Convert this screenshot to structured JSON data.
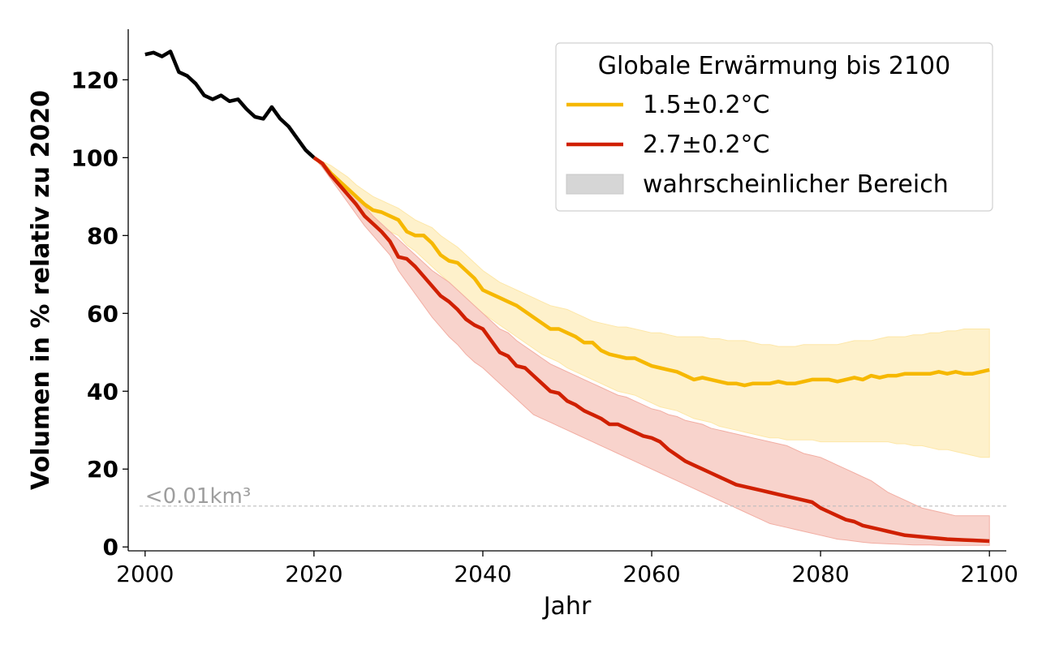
{
  "chart_data": {
    "type": "line",
    "xlabel": "Jahr",
    "ylabel": "Volumen in % relativ zu 2020",
    "xlim": [
      1998,
      2102
    ],
    "ylim": [
      -1,
      133
    ],
    "xticks": [
      2000,
      2020,
      2040,
      2060,
      2080,
      2100
    ],
    "yticks": [
      0,
      20,
      40,
      60,
      80,
      100,
      120
    ],
    "grid": false,
    "legend": {
      "title": "Globale Erwärmung bis 2100",
      "placement": "top-right",
      "entries": [
        "1.5±0.2°C",
        "2.7±0.2°C",
        "wahrscheinlicher Bereich"
      ]
    },
    "threshold": {
      "y": 10.5,
      "label": "<0.01km³",
      "color": "#bdbdbd"
    },
    "historical": {
      "color": "#000000",
      "x": [
        2000,
        2001,
        2002,
        2003,
        2004,
        2005,
        2006,
        2007,
        2008,
        2009,
        2010,
        2011,
        2012,
        2013,
        2014,
        2015,
        2016,
        2017,
        2018,
        2019,
        2020
      ],
      "y": [
        126.5,
        127,
        126,
        127.3,
        122,
        121,
        119,
        116,
        115,
        116,
        114.5,
        115,
        112.5,
        110.5,
        110,
        113,
        110,
        108,
        105,
        102,
        100
      ]
    },
    "series": [
      {
        "name": "1.5±0.2°C",
        "color": "#f6b800",
        "band_color": "#fde7a8",
        "x": [
          2020,
          2021,
          2022,
          2023,
          2024,
          2025,
          2026,
          2027,
          2028,
          2029,
          2030,
          2031,
          2032,
          2033,
          2034,
          2035,
          2036,
          2037,
          2038,
          2039,
          2040,
          2041,
          2042,
          2043,
          2044,
          2045,
          2046,
          2047,
          2048,
          2049,
          2050,
          2051,
          2052,
          2053,
          2054,
          2055,
          2056,
          2057,
          2058,
          2059,
          2060,
          2061,
          2062,
          2063,
          2064,
          2065,
          2066,
          2067,
          2068,
          2069,
          2070,
          2071,
          2072,
          2073,
          2074,
          2075,
          2076,
          2077,
          2078,
          2079,
          2080,
          2081,
          2082,
          2083,
          2084,
          2085,
          2086,
          2087,
          2088,
          2089,
          2090,
          2091,
          2092,
          2093,
          2094,
          2095,
          2096,
          2097,
          2098,
          2099,
          2100
        ],
        "y": [
          100,
          98.5,
          96,
          94,
          92,
          90,
          88,
          86.5,
          86,
          85,
          84,
          81,
          80,
          80,
          78,
          75,
          73.5,
          73,
          71,
          69,
          66,
          65,
          64,
          63,
          62,
          60.5,
          59,
          57.5,
          56,
          56,
          55,
          54,
          52.5,
          52.5,
          50.5,
          49.5,
          49,
          48.5,
          48.5,
          47.5,
          46.5,
          46,
          45.5,
          45,
          44,
          43,
          43.5,
          43,
          42.5,
          42,
          42,
          41.5,
          42,
          42,
          42,
          42.5,
          42,
          42,
          42.5,
          43,
          43,
          43,
          42.5,
          43,
          43.5,
          43,
          44,
          43.5,
          44,
          44,
          44.5,
          44.5,
          44.5,
          44.5,
          45,
          44.5,
          45,
          44.5,
          44.5,
          45,
          45.5
        ],
        "upper": [
          100,
          99,
          98,
          96.5,
          95,
          93,
          91.5,
          90,
          89,
          88,
          87,
          85.5,
          84,
          83,
          82,
          80,
          78.5,
          77,
          75,
          73,
          71,
          69.5,
          68,
          67,
          66,
          65,
          64,
          63,
          62,
          61.5,
          61,
          60,
          59,
          58,
          57.5,
          57,
          56.5,
          56.5,
          56,
          55.5,
          55,
          55,
          54.5,
          54,
          54,
          54,
          54,
          53.5,
          53.5,
          53,
          53,
          53,
          52.5,
          52,
          52,
          51.5,
          51.5,
          51.5,
          52,
          52,
          52,
          52,
          52,
          52.5,
          53,
          53,
          53,
          53.5,
          54,
          54,
          54,
          54.5,
          54.5,
          55,
          55,
          55.5,
          55.5,
          56,
          56,
          56,
          56
        ],
        "lower": [
          100,
          97.5,
          95,
          92.5,
          90,
          87.5,
          85,
          83.5,
          82,
          81,
          80,
          77.5,
          76,
          74,
          72,
          70,
          68,
          66,
          64,
          62,
          60,
          58.5,
          57,
          55.5,
          54,
          52.5,
          51,
          49.5,
          48.5,
          47.5,
          46,
          45,
          44,
          43,
          42,
          41,
          40,
          39.5,
          39,
          38,
          37,
          36,
          35.5,
          35,
          34,
          33,
          32.5,
          32,
          31,
          30.5,
          30,
          29.5,
          29,
          28.5,
          28,
          28,
          27.5,
          27.5,
          27.5,
          27.5,
          27,
          27,
          27,
          27,
          27,
          27,
          27,
          27,
          27,
          26.5,
          26.5,
          26,
          26,
          25.5,
          25,
          25,
          24.5,
          24,
          23.5,
          23,
          23
        ]
      },
      {
        "name": "2.7±0.2°C",
        "color": "#d02000",
        "band_color": "#f2aea3",
        "x": [
          2020,
          2021,
          2022,
          2023,
          2024,
          2025,
          2026,
          2027,
          2028,
          2029,
          2030,
          2031,
          2032,
          2033,
          2034,
          2035,
          2036,
          2037,
          2038,
          2039,
          2040,
          2041,
          2042,
          2043,
          2044,
          2045,
          2046,
          2047,
          2048,
          2049,
          2050,
          2051,
          2052,
          2053,
          2054,
          2055,
          2056,
          2057,
          2058,
          2059,
          2060,
          2061,
          2062,
          2063,
          2064,
          2065,
          2066,
          2067,
          2068,
          2069,
          2070,
          2071,
          2072,
          2073,
          2074,
          2075,
          2076,
          2077,
          2078,
          2079,
          2080,
          2081,
          2082,
          2083,
          2084,
          2085,
          2086,
          2087,
          2088,
          2089,
          2090,
          2091,
          2092,
          2093,
          2094,
          2095,
          2096,
          2097,
          2098,
          2099,
          2100
        ],
        "y": [
          100,
          98.5,
          95.5,
          93,
          90.5,
          88,
          85,
          83,
          81,
          78.5,
          74.5,
          74,
          72,
          69.5,
          67,
          64.5,
          63,
          61,
          58.5,
          57,
          56,
          53,
          50,
          49,
          46.5,
          46,
          44,
          42,
          40,
          39.5,
          37.5,
          36.5,
          35,
          34,
          33,
          31.5,
          31.5,
          30.5,
          29.5,
          28.5,
          28,
          27,
          25,
          23.5,
          22,
          21,
          20,
          19,
          18,
          17,
          16,
          15.5,
          15,
          14.5,
          14,
          13.5,
          13,
          12.5,
          12,
          11.5,
          10,
          9,
          8,
          7,
          6.5,
          5.5,
          5,
          4.5,
          4,
          3.5,
          3,
          2.8,
          2.6,
          2.4,
          2.2,
          2,
          1.9,
          1.8,
          1.7,
          1.6,
          1.5
        ],
        "upper": [
          100,
          98.5,
          96.5,
          94,
          92,
          89.5,
          87.5,
          85,
          83,
          81,
          79,
          77,
          75,
          73,
          71,
          69.5,
          68,
          66,
          64,
          62,
          60,
          58,
          56,
          55,
          53,
          51.5,
          50,
          48.5,
          47,
          46,
          45,
          44,
          43,
          42,
          41,
          40,
          39,
          38.5,
          37.5,
          36.5,
          35.5,
          35,
          34,
          33.5,
          32.5,
          32,
          31.5,
          30.5,
          30,
          29.5,
          29,
          28.5,
          28,
          27.5,
          27,
          26.5,
          26,
          25,
          24,
          23.5,
          23,
          22,
          21,
          20,
          19,
          18,
          17,
          15.5,
          14,
          13,
          12,
          11,
          10,
          9.5,
          9,
          8.5,
          8,
          8,
          8,
          8,
          8
        ],
        "lower": [
          100,
          97.5,
          94.5,
          91.5,
          88.5,
          85.5,
          82.5,
          80,
          77.5,
          75,
          71,
          68,
          65,
          62,
          59,
          56.5,
          54,
          52,
          49.5,
          47.5,
          46,
          44,
          42,
          40,
          38,
          36,
          34,
          33,
          32,
          31,
          30,
          29,
          28,
          27,
          26,
          25,
          24,
          23,
          22,
          21,
          20,
          19,
          18,
          17,
          16,
          15,
          14,
          13,
          12,
          11,
          10,
          9,
          8,
          7,
          6,
          5.5,
          5,
          4.5,
          4,
          3.5,
          3,
          2.5,
          2,
          1.8,
          1.5,
          1.2,
          1,
          0.9,
          0.8,
          0.7,
          0.6,
          0.5,
          0.5,
          0.5,
          0.4,
          0.4,
          0.4,
          0.4,
          0.4,
          0.4,
          0.4
        ]
      }
    ]
  }
}
